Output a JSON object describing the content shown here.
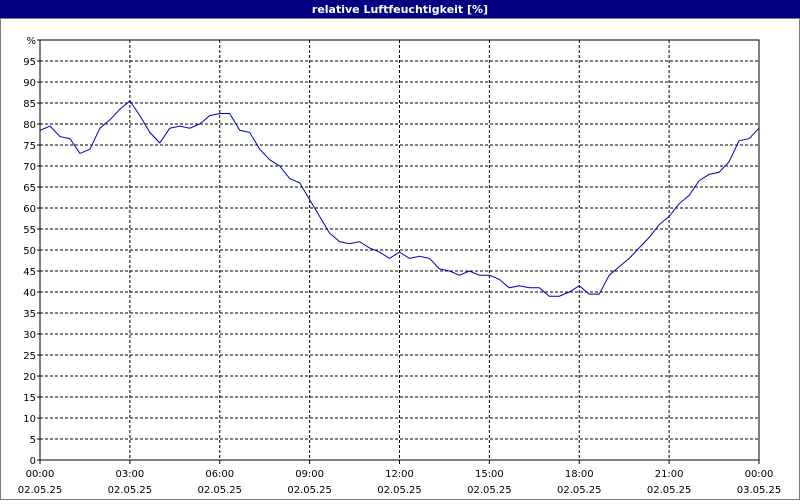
{
  "chart_data": {
    "type": "line",
    "title": "relative Luftfeuchtigkeit [%]",
    "x": [
      0,
      20,
      40,
      60,
      80,
      100,
      120,
      140,
      160,
      180,
      200,
      220,
      240,
      260,
      280,
      300,
      320,
      340,
      360,
      380,
      400,
      420,
      440,
      460,
      480,
      500,
      520,
      540,
      560,
      580,
      600,
      620,
      640,
      660,
      680,
      700,
      720,
      740,
      760,
      780,
      800,
      820,
      840,
      860,
      880,
      900,
      920,
      940,
      960,
      980,
      1000,
      1020,
      1040,
      1060,
      1080,
      1100,
      1120,
      1140,
      1160,
      1180,
      1200,
      1220,
      1240,
      1260,
      1280,
      1300,
      1320,
      1340,
      1360,
      1380,
      1400,
      1420,
      1440
    ],
    "series": [
      {
        "name": "relative Luftfeuchtigkeit",
        "color": "#0000c0",
        "values": [
          78.5,
          79.5,
          77,
          76.5,
          73,
          74,
          79,
          81,
          83.5,
          85.5,
          82,
          78,
          75.5,
          79,
          79.5,
          79,
          80,
          82,
          82.5,
          82.5,
          78.5,
          78,
          74,
          71.5,
          70,
          67,
          66,
          62,
          58,
          54,
          52,
          51.5,
          52,
          50.5,
          49.5,
          48,
          49.5,
          48,
          48.5,
          48,
          45.5,
          45,
          44,
          45,
          44,
          44,
          43,
          41,
          41.5,
          41,
          41,
          39,
          39,
          40,
          41.5,
          39.5,
          39.5,
          44,
          46,
          48,
          50.5,
          53,
          56,
          58,
          61,
          63,
          66.5,
          68,
          68.5,
          71,
          76,
          76.5,
          79
        ]
      }
    ],
    "xlim": [
      0,
      1440
    ],
    "xticks": [
      {
        "value": 0,
        "label": "00:00"
      },
      {
        "value": 180,
        "label": "03:00"
      },
      {
        "value": 360,
        "label": "06:00"
      },
      {
        "value": 540,
        "label": "09:00"
      },
      {
        "value": 720,
        "label": "12:00"
      },
      {
        "value": 900,
        "label": "15:00"
      },
      {
        "value": 1080,
        "label": "18:00"
      },
      {
        "value": 1260,
        "label": "21:00"
      },
      {
        "value": 1440,
        "label": "00:00"
      }
    ],
    "xtick_dates": [
      "02.05.25",
      "02.05.25",
      "02.05.25",
      "02.05.25",
      "02.05.25",
      "02.05.25",
      "02.05.25",
      "02.05.25",
      "03.05.25"
    ],
    "ylim": [
      0,
      100
    ],
    "yticks": [
      0,
      5,
      10,
      15,
      20,
      25,
      30,
      35,
      40,
      45,
      50,
      55,
      60,
      65,
      70,
      75,
      80,
      85,
      90,
      95,
      {
        "value": 100,
        "label": "%"
      }
    ],
    "grid": true
  }
}
